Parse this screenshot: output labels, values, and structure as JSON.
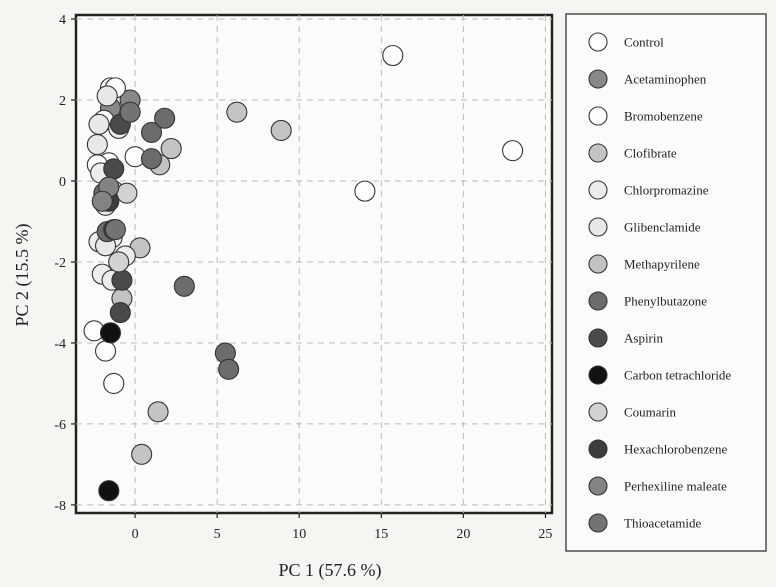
{
  "chart_data": {
    "type": "scatter",
    "xlabel": "PC 1  (57.6 %)",
    "ylabel": "PC 2 (15.5 %)",
    "xlim": [
      -3.6,
      25.4
    ],
    "ylim": [
      -8.2,
      4.1
    ],
    "xticks": [
      0,
      5,
      10,
      15,
      20,
      25
    ],
    "yticks": [
      4,
      2,
      0,
      -2,
      -4,
      -6,
      -8
    ],
    "grid": "dashed",
    "legend_position": "right",
    "series": [
      {
        "name": "Control",
        "color": "#ffffff",
        "points": [
          [
            15.7,
            3.1
          ],
          [
            23.0,
            0.75
          ],
          [
            14.0,
            -0.25
          ],
          [
            -1.5,
            2.3
          ],
          [
            -1.2,
            1.6
          ],
          [
            -1.6,
            0.45
          ],
          [
            -1.3,
            -5.0
          ]
        ]
      },
      {
        "name": "Acetaminophen",
        "color": "#888888",
        "points": [
          [
            -0.3,
            2.0
          ],
          [
            -1.5,
            1.8
          ]
        ]
      },
      {
        "name": "Bromobenzene",
        "color": "#fdfdfd",
        "points": [
          [
            -1.2,
            2.3
          ],
          [
            -1.9,
            1.5
          ],
          [
            0.0,
            0.6
          ],
          [
            -2.3,
            0.4
          ],
          [
            -2.5,
            -3.7
          ],
          [
            -1.8,
            -4.2
          ]
        ]
      },
      {
        "name": "Clofibrate",
        "color": "#c4c4c4",
        "points": [
          [
            6.2,
            1.7
          ],
          [
            8.9,
            1.25
          ],
          [
            2.2,
            0.8
          ],
          [
            0.3,
            -1.65
          ],
          [
            1.4,
            -5.7
          ],
          [
            0.4,
            -6.75
          ]
        ]
      },
      {
        "name": "Chlorpromazine",
        "color": "#ececec",
        "points": [
          [
            -1.0,
            1.3
          ],
          [
            -2.1,
            0.2
          ],
          [
            -1.3,
            -0.25
          ],
          [
            -2.2,
            -1.5
          ],
          [
            -1.4,
            -1.4
          ],
          [
            -0.6,
            -1.85
          ],
          [
            -2.0,
            -2.3
          ],
          [
            -1.4,
            -2.45
          ]
        ]
      },
      {
        "name": "Glibenclamide",
        "color": "#e8e8e8",
        "points": [
          [
            -1.7,
            2.1
          ],
          [
            -2.2,
            1.4
          ],
          [
            -2.3,
            0.9
          ],
          [
            -1.8,
            -0.6
          ],
          [
            -1.8,
            -1.6
          ]
        ]
      },
      {
        "name": "Methapyrilene",
        "color": "#c2c2c2",
        "points": [
          [
            1.5,
            0.4
          ],
          [
            -0.8,
            -2.9
          ]
        ]
      },
      {
        "name": "Phenylbutazone",
        "color": "#6c6c6c",
        "points": [
          [
            1.0,
            1.2
          ],
          [
            1.8,
            1.55
          ],
          [
            1.0,
            0.55
          ],
          [
            3.0,
            -2.6
          ],
          [
            5.5,
            -4.25
          ],
          [
            5.7,
            -4.65
          ],
          [
            -1.9,
            -0.3
          ],
          [
            -1.7,
            -1.25
          ]
        ]
      },
      {
        "name": "Aspirin",
        "color": "#4a4a4a",
        "points": [
          [
            -0.9,
            1.4
          ],
          [
            -1.3,
            0.3
          ],
          [
            -0.8,
            -2.45
          ],
          [
            -0.9,
            -3.25
          ]
        ]
      },
      {
        "name": "Carbon tetrachloride",
        "color": "#111111",
        "points": [
          [
            -1.5,
            -3.75
          ],
          [
            -1.6,
            -7.65
          ]
        ]
      },
      {
        "name": "Coumarin",
        "color": "#d2d2d2",
        "points": [
          [
            -0.5,
            -0.3
          ],
          [
            -1.0,
            -2.0
          ]
        ]
      },
      {
        "name": "Hexachlorobenzene",
        "color": "#3d3d3d",
        "points": [
          [
            -1.6,
            -0.5
          ],
          [
            -1.3,
            -1.2
          ]
        ]
      },
      {
        "name": "Perhexiline maleate",
        "color": "#838383",
        "points": [
          [
            -1.6,
            -0.15
          ],
          [
            -2.0,
            -0.5
          ]
        ]
      },
      {
        "name": "Thioacetamide",
        "color": "#737373",
        "points": [
          [
            -0.3,
            1.7
          ],
          [
            -1.2,
            -1.2
          ]
        ]
      }
    ]
  }
}
